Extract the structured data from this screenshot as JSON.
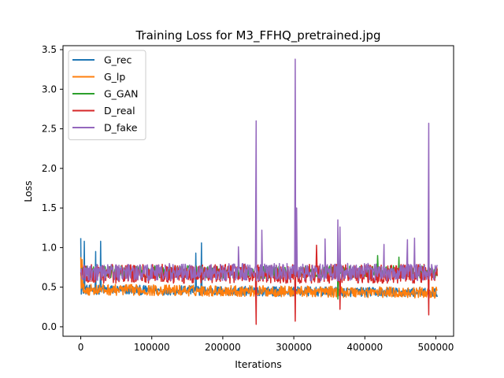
{
  "chart_data": {
    "type": "line",
    "title": "Training Loss for M3_FFHQ_pretrained.jpg",
    "xlabel": "Iterations",
    "ylabel": "Loss",
    "xlim": [
      -25000,
      525000
    ],
    "ylim": [
      -0.12,
      3.55
    ],
    "xticks": [
      0,
      100000,
      200000,
      300000,
      400000,
      500000
    ],
    "xtick_labels": [
      "0",
      "100000",
      "200000",
      "300000",
      "400000",
      "500000"
    ],
    "yticks": [
      0.0,
      0.5,
      1.0,
      1.5,
      2.0,
      2.5,
      3.0,
      3.5
    ],
    "ytick_labels": [
      "0.0",
      "0.5",
      "1.0",
      "1.5",
      "2.0",
      "2.5",
      "3.0",
      "3.5"
    ],
    "grid": false,
    "legend_position": "upper-left",
    "x_range": [
      0,
      502000
    ],
    "series": [
      {
        "name": "G_rec",
        "color": "#1f77b4",
        "base": 0.47,
        "noise": 0.06,
        "spikes": [
          [
            0,
            1.12
          ],
          [
            5000,
            1.08
          ],
          [
            28000,
            1.08
          ],
          [
            21000,
            0.95
          ],
          [
            170000,
            1.06
          ],
          [
            162000,
            0.93
          ]
        ]
      },
      {
        "name": "G_lp",
        "color": "#ff7f0e",
        "base": 0.47,
        "noise": 0.07,
        "spikes": [
          [
            0,
            0.88
          ],
          [
            2000,
            0.85
          ]
        ]
      },
      {
        "name": "G_GAN",
        "color": "#2ca02c",
        "base": 0.69,
        "noise": 0.08,
        "spikes": [
          [
            418000,
            0.9
          ],
          [
            448000,
            0.88
          ],
          [
            362000,
            0.35
          ]
        ]
      },
      {
        "name": "D_real",
        "color": "#d62728",
        "base": 0.67,
        "noise": 0.12,
        "spikes": [
          [
            247000,
            0.03
          ],
          [
            302000,
            0.07
          ],
          [
            365000,
            0.22
          ],
          [
            490000,
            0.15
          ],
          [
            332000,
            1.03
          ]
        ]
      },
      {
        "name": "D_fake",
        "color": "#9467bd",
        "base": 0.69,
        "noise": 0.11,
        "spikes": [
          [
            247000,
            2.6
          ],
          [
            302000,
            3.38
          ],
          [
            304000,
            1.5
          ],
          [
            255000,
            1.22
          ],
          [
            490000,
            2.57
          ],
          [
            362000,
            1.35
          ],
          [
            365000,
            1.26
          ],
          [
            344000,
            1.11
          ],
          [
            470000,
            1.12
          ],
          [
            460000,
            1.1
          ],
          [
            427000,
            1.04
          ],
          [
            222000,
            1.01
          ]
        ]
      }
    ]
  }
}
